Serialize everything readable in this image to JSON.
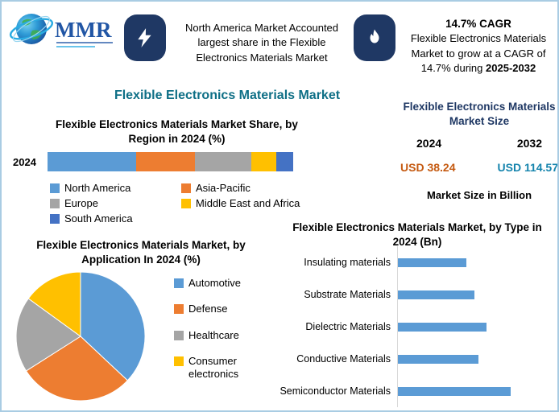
{
  "brand": {
    "logo_text": "MMR"
  },
  "callouts": [
    {
      "icon": "lightning-icon",
      "text": "North America Market Accounted largest share in the Flexible Electronics Materials Market"
    },
    {
      "icon": "flame-icon",
      "title": "14.7% CAGR",
      "text": "Flexible Electronics Materials Market to grow at a CAGR of 14.7% during",
      "period": "2025-2032"
    }
  ],
  "main_title": "Flexible Electronics Materials Market",
  "market_size_panel": {
    "title": "Flexible Electronics Materials Market Size",
    "year_left": "2024",
    "year_right": "2032",
    "value_left": "USD 38.24",
    "value_right": "USD 114.57",
    "value_left_color": "#C55A11",
    "value_right_color": "#1584AD",
    "note": "Market Size in Billion"
  },
  "colors": {
    "navy_tile": "#1F3864",
    "main_title_teal": "#0E6F86",
    "border_light_blue": "#A9CCE3",
    "palette_blue": "#5B9BD5",
    "palette_orange": "#ED7D31",
    "palette_gray": "#A5A5A5",
    "palette_yellow": "#FFC000",
    "palette_dark_blue": "#4472C4"
  },
  "chart_data": [
    {
      "type": "bar",
      "subtype": "stacked-horizontal",
      "title": "Flexible Electronics Materials Market Share, by Region in 2024 (%)",
      "row_label": "2024",
      "xlim": [
        0,
        100
      ],
      "legend_position": "bottom",
      "series": [
        {
          "name": "North America",
          "value": 36,
          "color": "#5B9BD5"
        },
        {
          "name": "Asia-Pacific",
          "value": 24,
          "color": "#ED7D31"
        },
        {
          "name": "Europe",
          "value": 23,
          "color": "#A5A5A5"
        },
        {
          "name": "Middle East and Africa",
          "value": 10,
          "color": "#FFC000"
        },
        {
          "name": "South America",
          "value": 7,
          "color": "#4472C4"
        }
      ]
    },
    {
      "type": "pie",
      "title": "Flexible Electronics Materials Market, by Application In 2024 (%)",
      "legend_position": "right",
      "slices": [
        {
          "label": "Automotive",
          "value": 37,
          "color": "#5B9BD5"
        },
        {
          "label": "Defense",
          "value": 29,
          "color": "#ED7D31"
        },
        {
          "label": "Healthcare",
          "value": 19,
          "color": "#A5A5A5"
        },
        {
          "label": "Consumer electronics",
          "value": 15,
          "color": "#FFC000"
        }
      ]
    },
    {
      "type": "bar",
      "subtype": "horizontal",
      "title": "Flexible Electronics Materials Market, by Type in 2024 (Bn)",
      "categories": [
        "Insulating materials",
        "Substrate Materials",
        "Dielectric Materials",
        "Conductive Materials",
        "Semiconductor Materials"
      ],
      "values": [
        1.7,
        1.9,
        2.2,
        2.0,
        2.8
      ],
      "values_estimated": true,
      "xmax": 3.0,
      "bar_color": "#5B9BD5",
      "grid": false
    }
  ]
}
